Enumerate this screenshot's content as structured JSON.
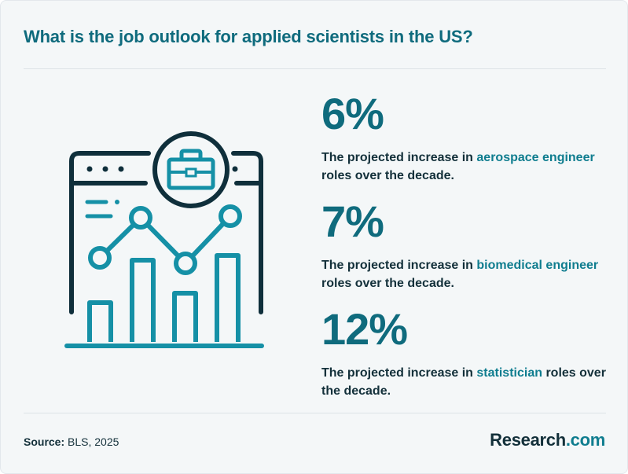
{
  "title": "What is the job outlook for applied scientists in the US?",
  "stats": [
    {
      "value": "6%",
      "prefix": "The projected increase in ",
      "highlight": "aerospace engineer",
      "suffix": " roles over the decade."
    },
    {
      "value": "7%",
      "prefix": "The projected increase in ",
      "highlight": "biomedical engineer",
      "suffix": " roles over the decade."
    },
    {
      "value": "12%",
      "prefix": "The projected increase in ",
      "highlight": "statistician",
      "suffix": " roles over the decade."
    }
  ],
  "footer": {
    "source_label": "Source:",
    "source_text": " BLS, 2025",
    "brand_main": "Research",
    "brand_suffix": ".com"
  },
  "illustration": {
    "icon": "browser-window-line-bar-chart-briefcase-icon",
    "colors": {
      "dark": "#0f2f3b",
      "accent": "#1590a6"
    }
  },
  "colors": {
    "title": "#0f6b7d",
    "highlight": "#0f7d8f",
    "body_text": "#13303a",
    "background": "#f4f7f8"
  }
}
